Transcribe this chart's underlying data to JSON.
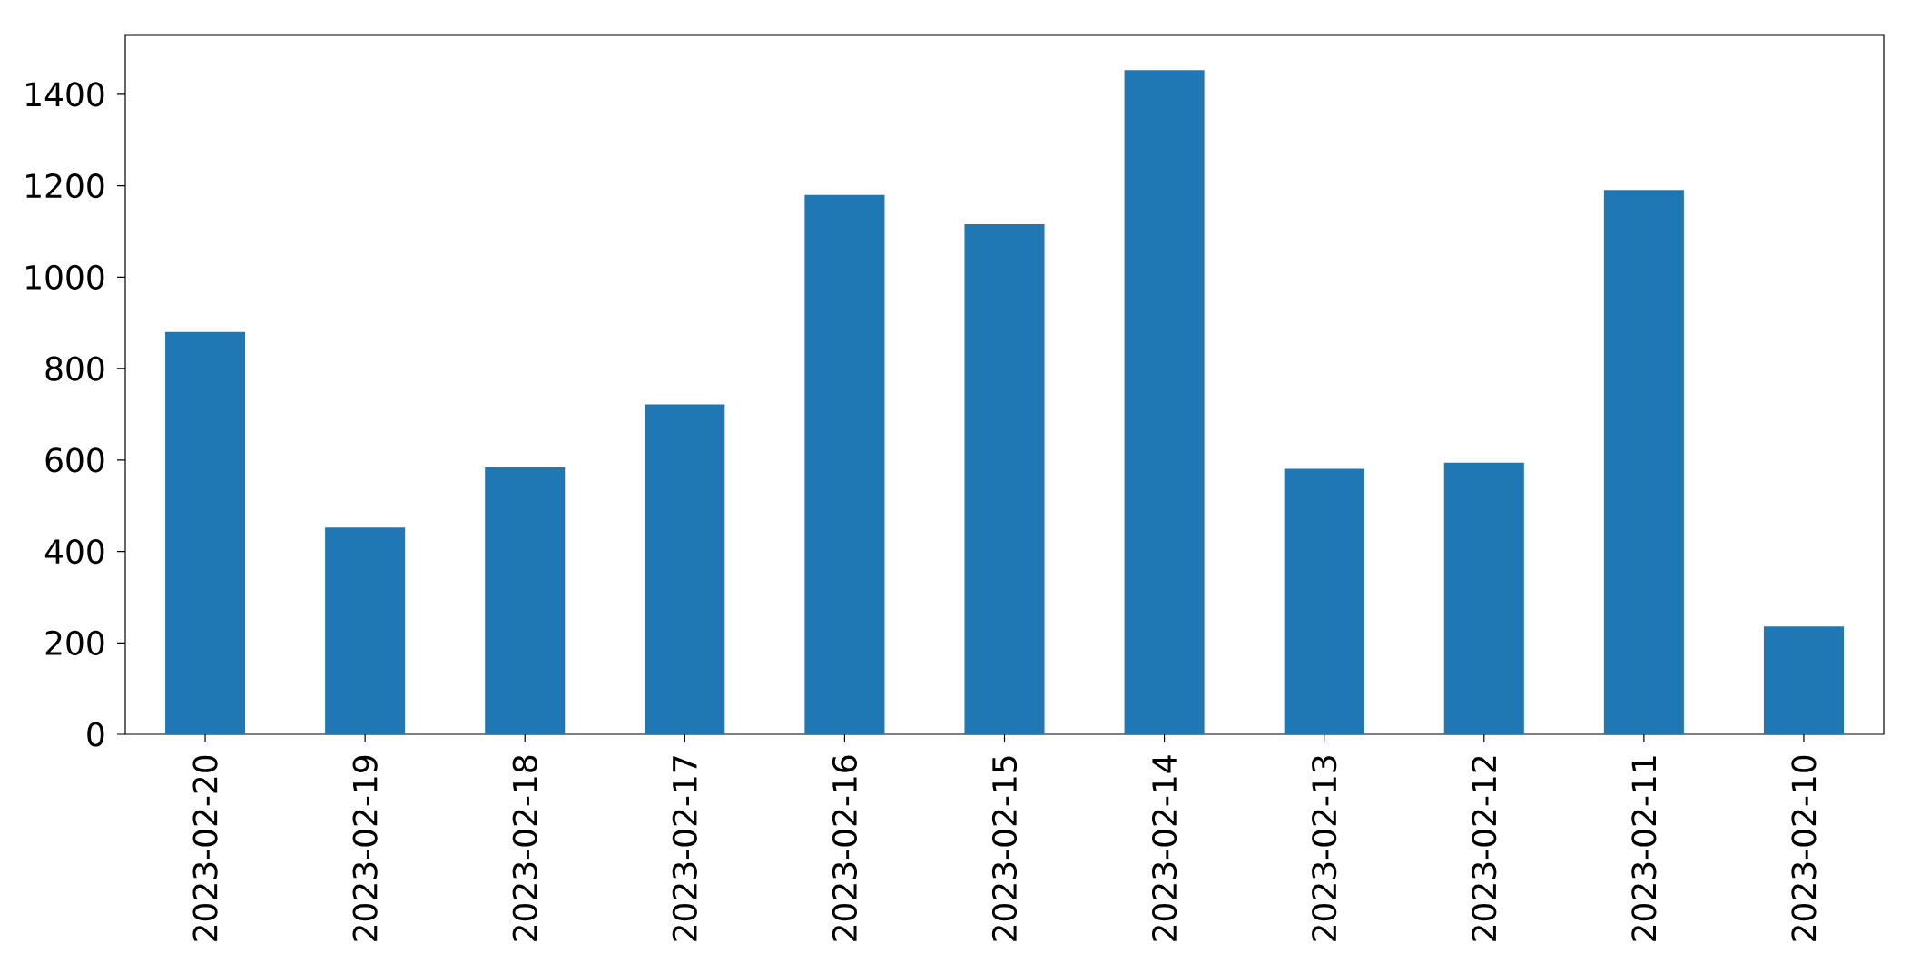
{
  "chart_data": {
    "type": "bar",
    "categories": [
      "2023-02-20",
      "2023-02-19",
      "2023-02-18",
      "2023-02-17",
      "2023-02-16",
      "2023-02-15",
      "2023-02-14",
      "2023-02-13",
      "2023-02-12",
      "2023-02-11",
      "2023-02-10"
    ],
    "values": [
      880,
      452,
      584,
      722,
      1180,
      1116,
      1453,
      581,
      594,
      1191,
      236
    ],
    "color": "#1f77b4",
    "ylim": [
      0,
      1529
    ],
    "yticks": [
      0,
      200,
      400,
      600,
      800,
      1000,
      1200,
      1400
    ]
  }
}
